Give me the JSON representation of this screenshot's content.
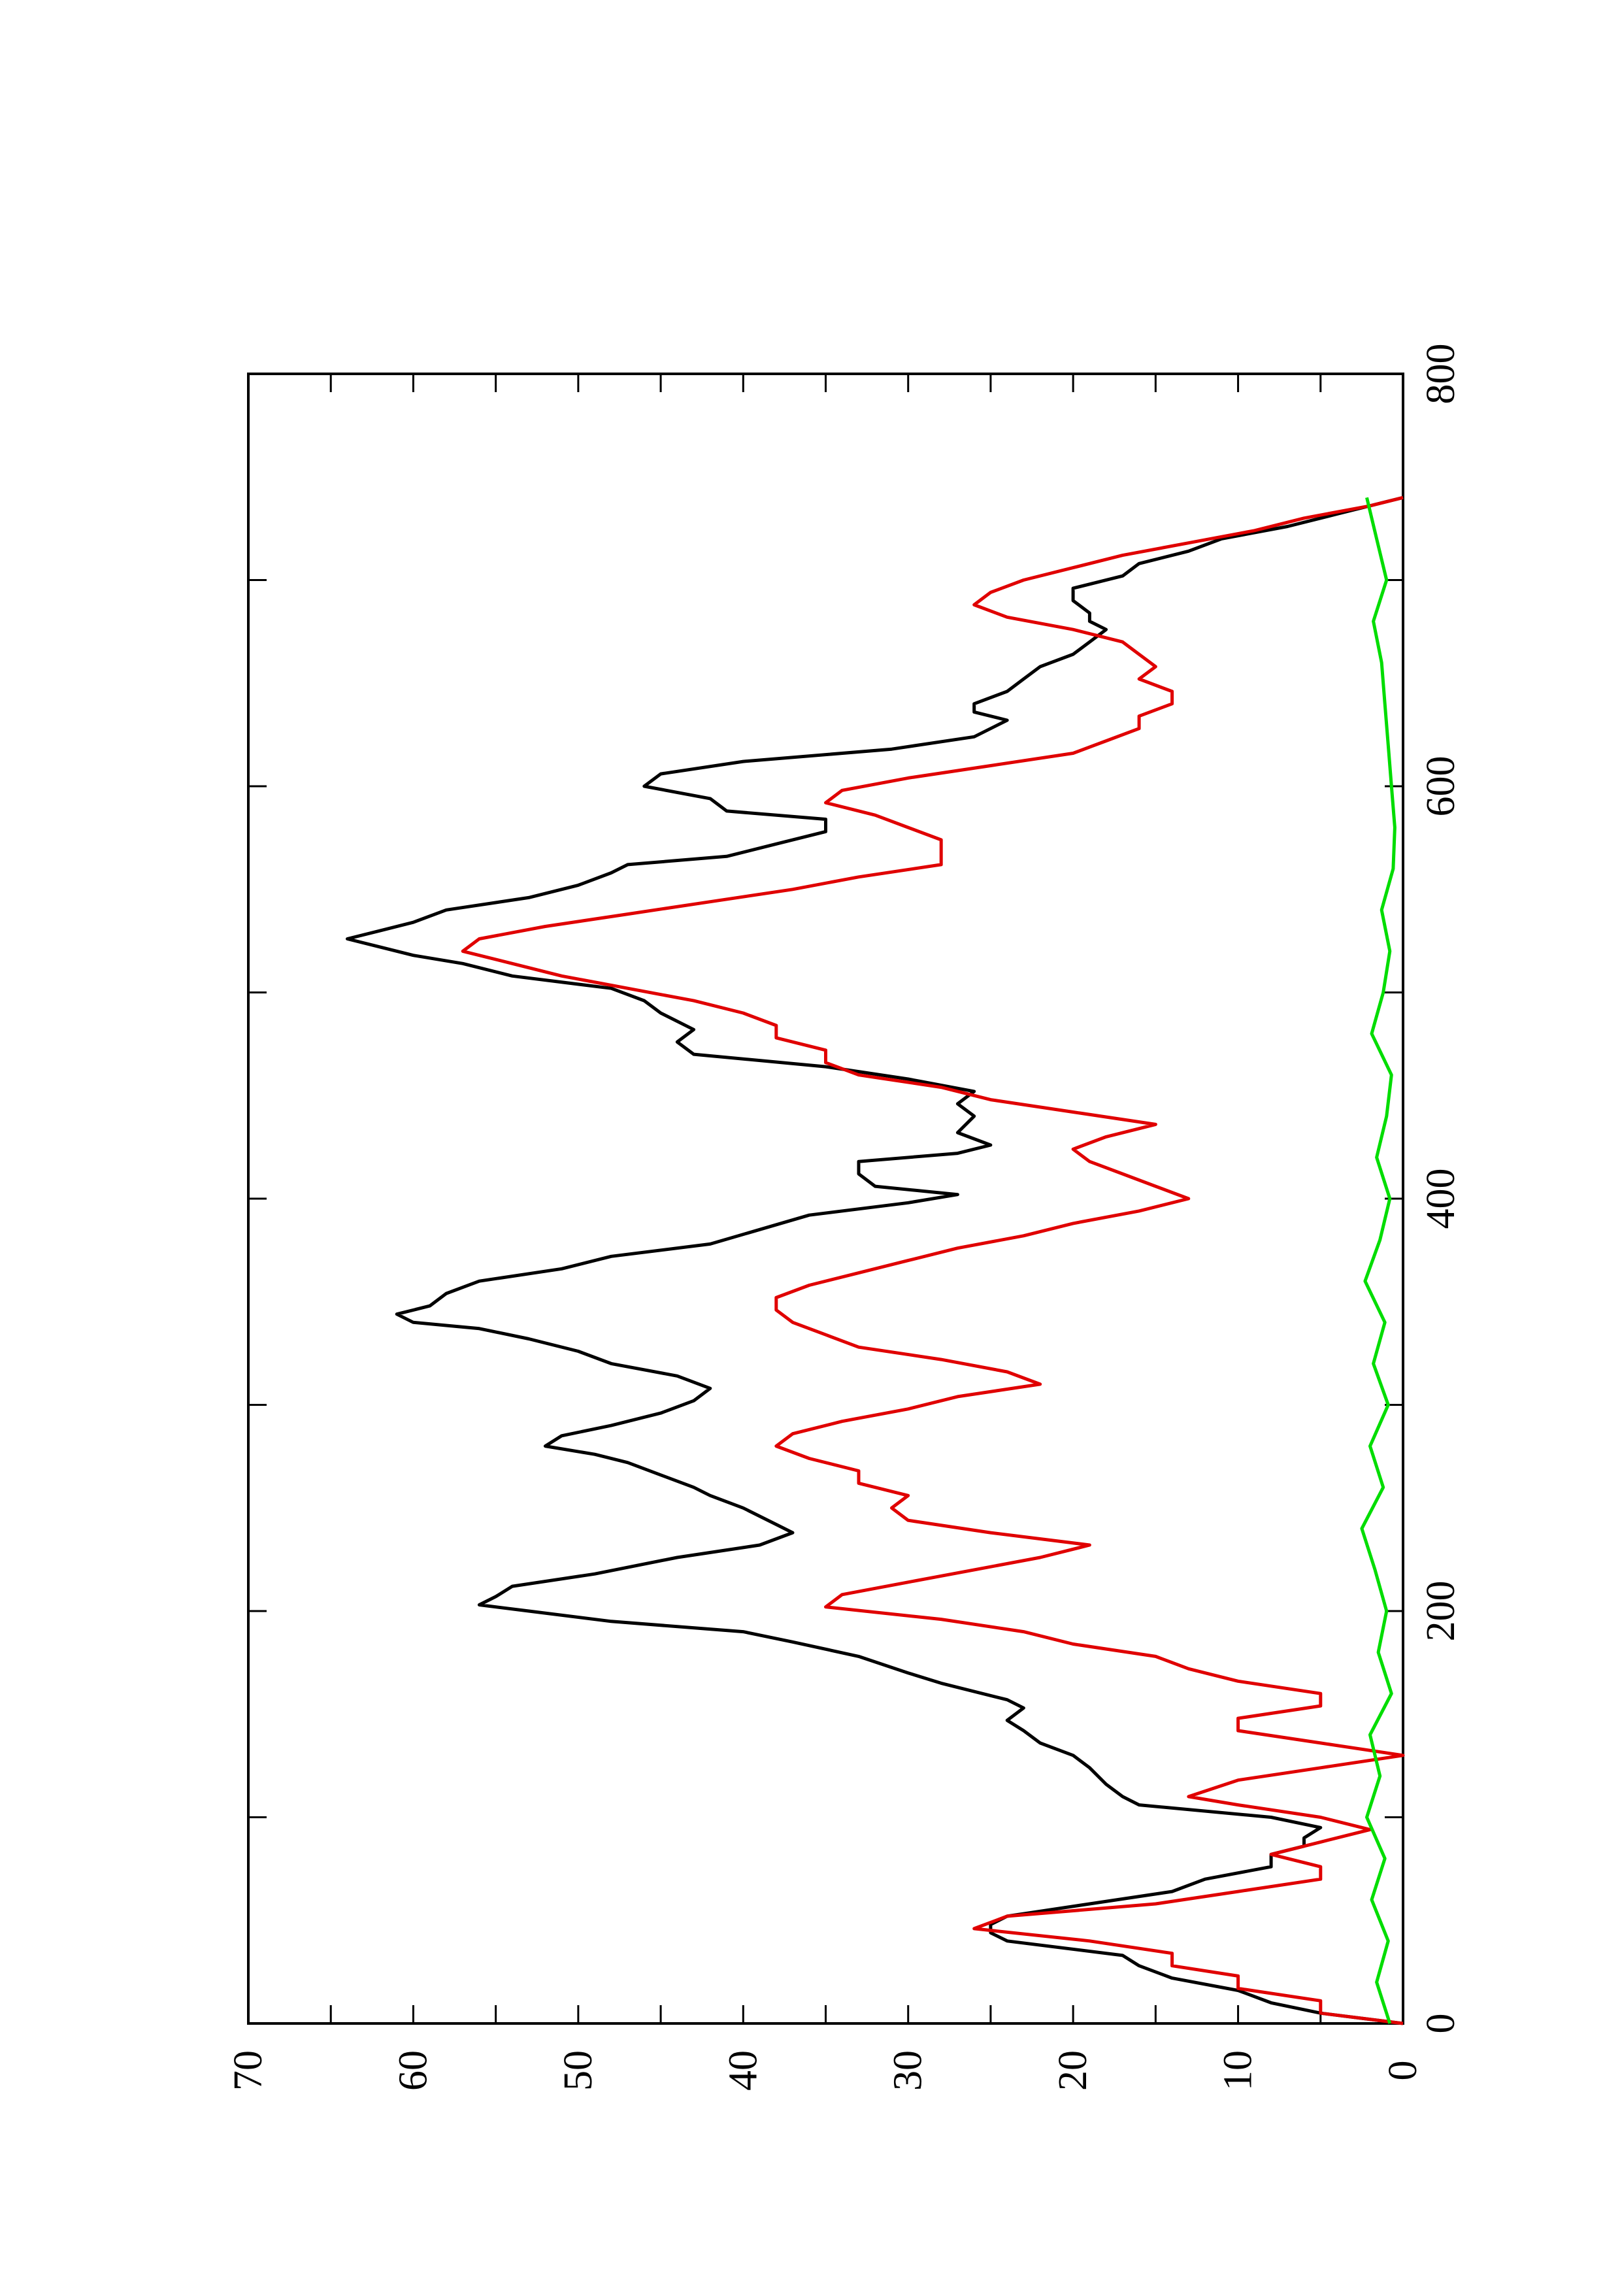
{
  "chart_data": {
    "type": "line",
    "orientation": "rotated 90 degrees counter-clockwise (x axis runs up the page)",
    "title": "",
    "xlabel": "",
    "ylabel": "",
    "xlim": [
      0,
      800
    ],
    "ylim": [
      0,
      70
    ],
    "x_ticks": [
      "0",
      "200",
      "400",
      "600",
      "800"
    ],
    "y_ticks": [
      "0",
      "10",
      "20",
      "30",
      "40",
      "50",
      "60",
      "70"
    ],
    "grid": false,
    "legend": "none",
    "series": [
      {
        "color": "#000000",
        "points": [
          [
            0,
            0
          ],
          [
            5,
            5
          ],
          [
            10,
            8
          ],
          [
            16,
            10
          ],
          [
            22,
            14
          ],
          [
            28,
            16
          ],
          [
            33,
            17
          ],
          [
            40,
            24
          ],
          [
            44,
            25
          ],
          [
            48,
            25
          ],
          [
            52,
            24
          ],
          [
            58,
            19
          ],
          [
            64,
            14
          ],
          [
            70,
            12
          ],
          [
            76,
            8
          ],
          [
            82,
            8
          ],
          [
            86,
            6
          ],
          [
            90,
            6
          ],
          [
            95,
            5
          ],
          [
            100,
            8
          ],
          [
            106,
            16
          ],
          [
            110,
            17
          ],
          [
            116,
            18
          ],
          [
            124,
            19
          ],
          [
            130,
            20
          ],
          [
            136,
            22
          ],
          [
            142,
            23
          ],
          [
            147,
            24
          ],
          [
            153,
            23
          ],
          [
            157,
            24
          ],
          [
            165,
            28
          ],
          [
            170,
            30
          ],
          [
            178,
            33
          ],
          [
            185,
            37
          ],
          [
            190,
            40
          ],
          [
            195,
            48
          ],
          [
            200,
            53
          ],
          [
            203,
            56
          ],
          [
            207,
            55
          ],
          [
            212,
            54
          ],
          [
            218,
            49
          ],
          [
            226,
            44
          ],
          [
            232,
            39
          ],
          [
            238,
            37
          ],
          [
            242,
            38
          ],
          [
            250,
            40
          ],
          [
            256,
            42
          ],
          [
            260,
            43
          ],
          [
            266,
            45
          ],
          [
            272,
            47
          ],
          [
            276,
            49
          ],
          [
            280,
            52
          ],
          [
            285,
            51
          ],
          [
            290,
            48
          ],
          [
            296,
            45
          ],
          [
            302,
            43
          ],
          [
            308,
            42
          ],
          [
            314,
            44
          ],
          [
            320,
            48
          ],
          [
            326,
            50
          ],
          [
            332,
            53
          ],
          [
            337,
            56
          ],
          [
            340,
            60
          ],
          [
            344,
            61
          ],
          [
            348,
            59
          ],
          [
            354,
            58
          ],
          [
            360,
            56
          ],
          [
            366,
            51
          ],
          [
            372,
            48
          ],
          [
            378,
            42
          ],
          [
            385,
            39
          ],
          [
            392,
            36
          ],
          [
            398,
            30
          ],
          [
            402,
            27
          ],
          [
            406,
            32
          ],
          [
            412,
            33
          ],
          [
            418,
            33
          ],
          [
            422,
            27
          ],
          [
            426,
            25
          ],
          [
            432,
            27
          ],
          [
            440,
            26
          ],
          [
            446,
            27
          ],
          [
            452,
            26
          ],
          [
            458,
            30
          ],
          [
            464,
            35
          ],
          [
            470,
            43
          ],
          [
            476,
            44
          ],
          [
            482,
            43
          ],
          [
            490,
            45
          ],
          [
            496,
            46
          ],
          [
            502,
            48
          ],
          [
            508,
            54
          ],
          [
            514,
            57
          ],
          [
            518,
            60
          ],
          [
            522,
            62
          ],
          [
            526,
            64
          ],
          [
            530,
            62
          ],
          [
            534,
            60
          ],
          [
            540,
            58
          ],
          [
            546,
            53
          ],
          [
            552,
            50
          ],
          [
            558,
            48
          ],
          [
            562,
            47
          ],
          [
            566,
            41
          ],
          [
            572,
            38
          ],
          [
            578,
            35
          ],
          [
            584,
            35
          ],
          [
            588,
            41
          ],
          [
            594,
            42
          ],
          [
            600,
            46
          ],
          [
            606,
            45
          ],
          [
            612,
            40
          ],
          [
            618,
            31
          ],
          [
            624,
            26
          ],
          [
            628,
            25
          ],
          [
            632,
            24
          ],
          [
            636,
            26
          ],
          [
            640,
            26
          ],
          [
            646,
            24
          ],
          [
            652,
            23
          ],
          [
            658,
            22
          ],
          [
            664,
            20
          ],
          [
            670,
            19
          ],
          [
            676,
            18
          ],
          [
            680,
            19
          ],
          [
            684,
            19
          ],
          [
            690,
            20
          ],
          [
            696,
            20
          ],
          [
            702,
            17
          ],
          [
            708,
            16
          ],
          [
            714,
            13
          ],
          [
            720,
            11
          ],
          [
            726,
            7
          ],
          [
            732,
            4
          ],
          [
            738,
            1
          ],
          [
            740,
            0
          ]
        ]
      },
      {
        "color": "#e00000",
        "points": [
          [
            0,
            0
          ],
          [
            5,
            5
          ],
          [
            11,
            5
          ],
          [
            17,
            10
          ],
          [
            23,
            10
          ],
          [
            28,
            14
          ],
          [
            34,
            14
          ],
          [
            40,
            19
          ],
          [
            46,
            26
          ],
          [
            52,
            24
          ],
          [
            58,
            15
          ],
          [
            64,
            10
          ],
          [
            70,
            5
          ],
          [
            76,
            5
          ],
          [
            82,
            8
          ],
          [
            88,
            5
          ],
          [
            94,
            2
          ],
          [
            100,
            5
          ],
          [
            106,
            10
          ],
          [
            110,
            13
          ],
          [
            118,
            10
          ],
          [
            124,
            5
          ],
          [
            130,
            0
          ],
          [
            136,
            5
          ],
          [
            142,
            10
          ],
          [
            148,
            10
          ],
          [
            154,
            5
          ],
          [
            160,
            5
          ],
          [
            166,
            10
          ],
          [
            172,
            13
          ],
          [
            178,
            15
          ],
          [
            184,
            20
          ],
          [
            190,
            23
          ],
          [
            196,
            28
          ],
          [
            202,
            35
          ],
          [
            208,
            34
          ],
          [
            214,
            30
          ],
          [
            220,
            26
          ],
          [
            226,
            22
          ],
          [
            232,
            19
          ],
          [
            238,
            25
          ],
          [
            244,
            30
          ],
          [
            250,
            31
          ],
          [
            256,
            30
          ],
          [
            262,
            33
          ],
          [
            268,
            33
          ],
          [
            274,
            36
          ],
          [
            280,
            38
          ],
          [
            286,
            37
          ],
          [
            292,
            34
          ],
          [
            298,
            30
          ],
          [
            304,
            27
          ],
          [
            310,
            22
          ],
          [
            316,
            24
          ],
          [
            322,
            28
          ],
          [
            328,
            33
          ],
          [
            334,
            35
          ],
          [
            340,
            37
          ],
          [
            346,
            38
          ],
          [
            352,
            38
          ],
          [
            358,
            36
          ],
          [
            364,
            33
          ],
          [
            370,
            30
          ],
          [
            376,
            27
          ],
          [
            382,
            23
          ],
          [
            388,
            20
          ],
          [
            394,
            16
          ],
          [
            400,
            13
          ],
          [
            406,
            15
          ],
          [
            412,
            17
          ],
          [
            418,
            19
          ],
          [
            424,
            20
          ],
          [
            430,
            18
          ],
          [
            436,
            15
          ],
          [
            442,
            20
          ],
          [
            448,
            25
          ],
          [
            454,
            28
          ],
          [
            460,
            33
          ],
          [
            466,
            35
          ],
          [
            472,
            35
          ],
          [
            478,
            38
          ],
          [
            484,
            38
          ],
          [
            490,
            40
          ],
          [
            496,
            43
          ],
          [
            502,
            47
          ],
          [
            508,
            51
          ],
          [
            514,
            54
          ],
          [
            520,
            57
          ],
          [
            526,
            56
          ],
          [
            532,
            52
          ],
          [
            538,
            47
          ],
          [
            544,
            42
          ],
          [
            550,
            37
          ],
          [
            556,
            33
          ],
          [
            562,
            28
          ],
          [
            568,
            28
          ],
          [
            574,
            28
          ],
          [
            580,
            30
          ],
          [
            586,
            32
          ],
          [
            592,
            35
          ],
          [
            598,
            34
          ],
          [
            604,
            30
          ],
          [
            610,
            25
          ],
          [
            616,
            20
          ],
          [
            622,
            18
          ],
          [
            628,
            16
          ],
          [
            634,
            16
          ],
          [
            640,
            14
          ],
          [
            646,
            14
          ],
          [
            652,
            16
          ],
          [
            658,
            15
          ],
          [
            664,
            16
          ],
          [
            670,
            17
          ],
          [
            676,
            20
          ],
          [
            682,
            24
          ],
          [
            688,
            26
          ],
          [
            694,
            25
          ],
          [
            700,
            23
          ],
          [
            706,
            20
          ],
          [
            712,
            17
          ],
          [
            718,
            13
          ],
          [
            724,
            9
          ],
          [
            730,
            6
          ],
          [
            736,
            2
          ],
          [
            740,
            0
          ]
        ]
      },
      {
        "color": "#00dd00",
        "description": "fluctuating trace hovering between 0 and about 2.5 across x = 0..740",
        "points": [
          [
            0,
            0.8
          ],
          [
            20,
            1.6
          ],
          [
            40,
            0.9
          ],
          [
            60,
            1.9
          ],
          [
            80,
            1.1
          ],
          [
            100,
            2.2
          ],
          [
            120,
            1.4
          ],
          [
            140,
            2.0
          ],
          [
            160,
            0.7
          ],
          [
            180,
            1.5
          ],
          [
            200,
            1.0
          ],
          [
            220,
            1.7
          ],
          [
            240,
            2.5
          ],
          [
            260,
            1.2
          ],
          [
            280,
            2.0
          ],
          [
            300,
            0.9
          ],
          [
            320,
            1.8
          ],
          [
            340,
            1.1
          ],
          [
            360,
            2.3
          ],
          [
            380,
            1.4
          ],
          [
            400,
            0.8
          ],
          [
            420,
            1.6
          ],
          [
            440,
            1.0
          ],
          [
            460,
            0.7
          ],
          [
            480,
            1.9
          ],
          [
            500,
            1.2
          ],
          [
            520,
            0.8
          ],
          [
            540,
            1.3
          ],
          [
            560,
            0.6
          ],
          [
            580,
            0.5
          ],
          [
            600,
            0.7
          ],
          [
            620,
            0.9
          ],
          [
            640,
            1.1
          ],
          [
            660,
            1.3
          ],
          [
            680,
            1.8
          ],
          [
            700,
            1.0
          ],
          [
            720,
            1.6
          ],
          [
            740,
            2.2
          ]
        ]
      }
    ]
  }
}
